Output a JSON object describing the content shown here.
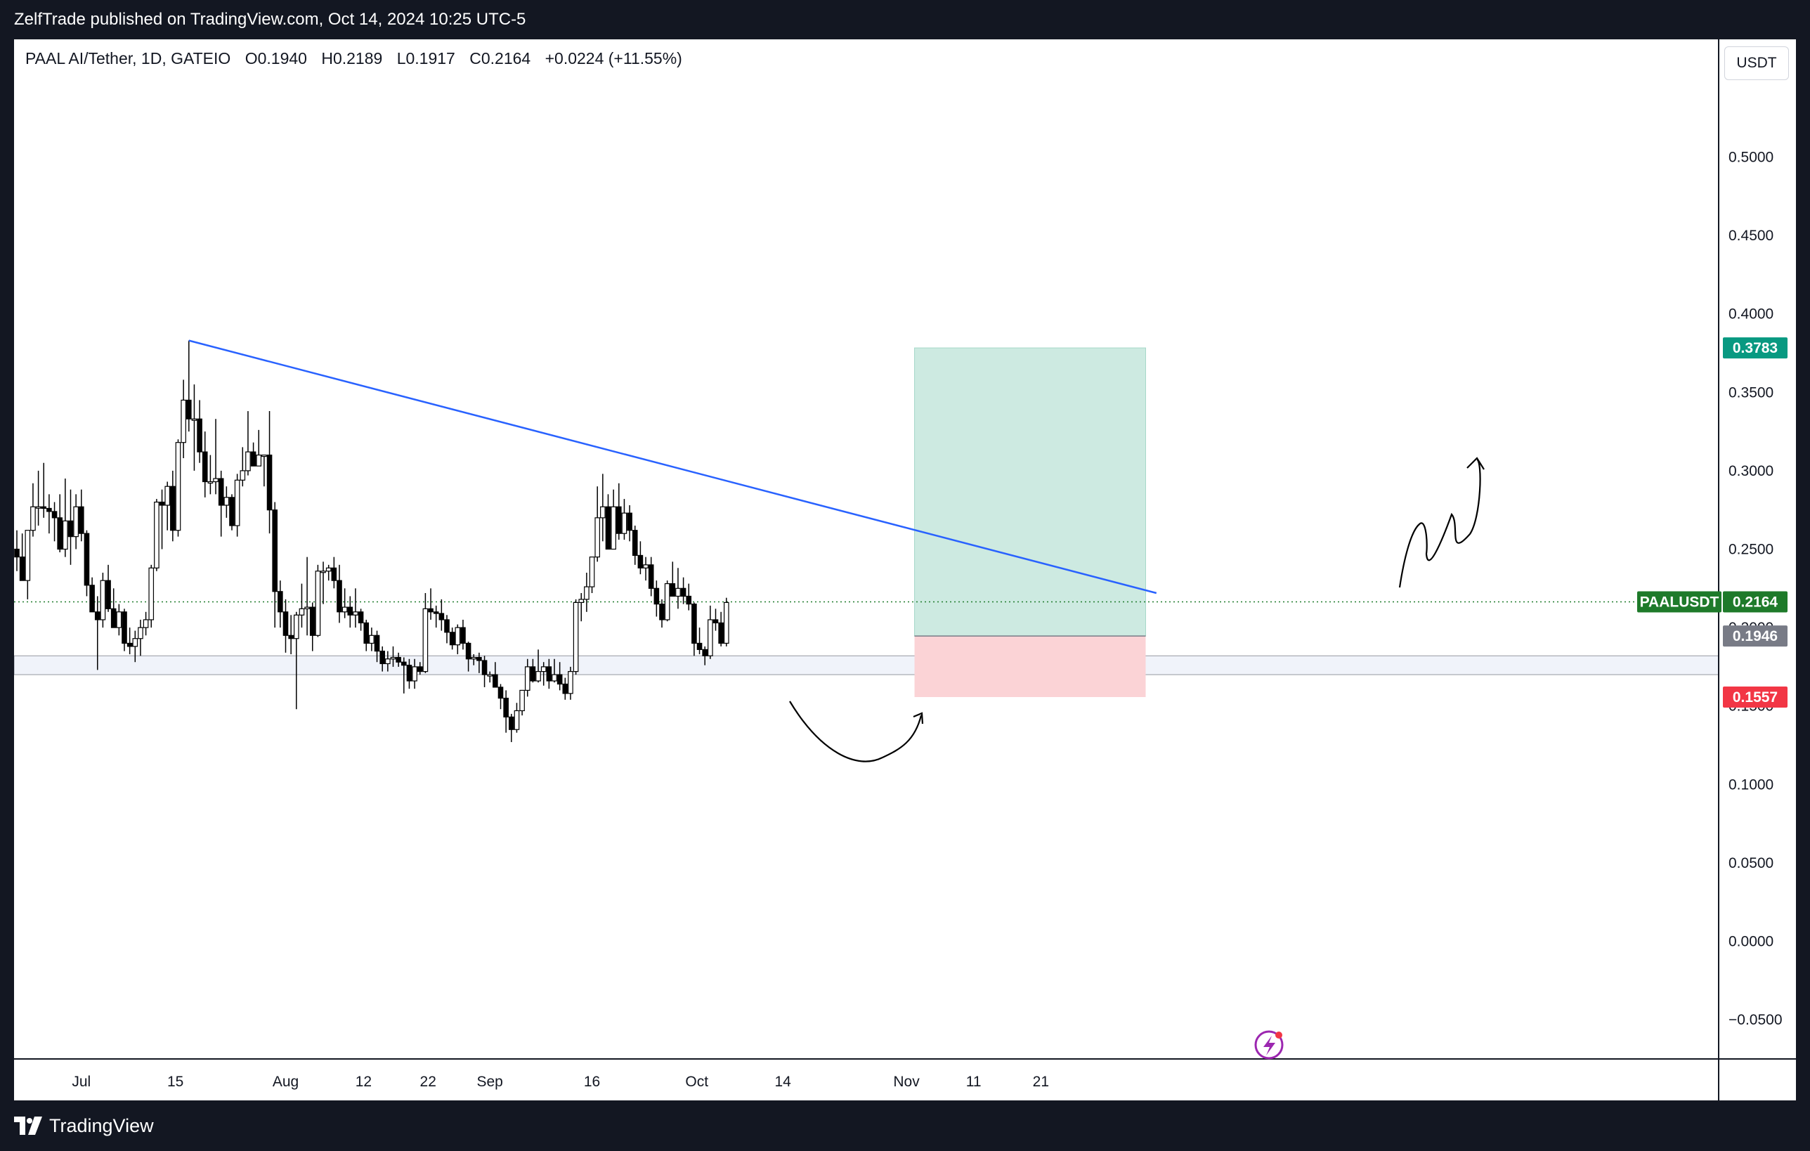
{
  "header": {
    "text": "ZelfTrade published on TradingView.com, Oct 14, 2024 10:25 UTC-5"
  },
  "legend": {
    "symbol": "PAAL AI/Tether, 1D, GATEIO",
    "open": "O0.1940",
    "high": "H0.2189",
    "low": "L0.1917",
    "close": "C0.2164",
    "change": "+0.0224 (+11.55%)"
  },
  "unit": "USDT",
  "footer": {
    "brand": "TradingView"
  },
  "colors": {
    "background": "#ffffff",
    "frame": "#131722",
    "candle_up": "#ffffff",
    "candle_down": "#000000",
    "trendline": "#2962ff",
    "profit_zone": "#cdeae1",
    "loss_zone": "#fbd3d6",
    "target_tag": "#089981",
    "stop_tag": "#f23645",
    "price_tag": "#1e7a2a",
    "entry_tag": "#787b86"
  },
  "chart_data": {
    "type": "candlestick",
    "y_ticks": [
      "0.5000",
      "0.4500",
      "0.4000",
      "0.3500",
      "0.3000",
      "0.2500",
      "0.2000",
      "0.1500",
      "0.1000",
      "0.0500",
      "0.0000",
      "−0.0500"
    ],
    "y_range": [
      -0.075,
      0.575
    ],
    "x_ticks": [
      "Jul",
      "15",
      "Aug",
      "12",
      "22",
      "Sep",
      "16",
      "Oct",
      "14",
      "Nov",
      "11",
      "21"
    ],
    "candles": [
      {
        "o": 0.25,
        "h": 0.262,
        "l": 0.236,
        "c": 0.245
      },
      {
        "o": 0.245,
        "h": 0.26,
        "l": 0.23,
        "c": 0.23
      },
      {
        "o": 0.23,
        "h": 0.262,
        "l": 0.218,
        "c": 0.262
      },
      {
        "o": 0.262,
        "h": 0.292,
        "l": 0.258,
        "c": 0.277
      },
      {
        "o": 0.277,
        "h": 0.3,
        "l": 0.265,
        "c": 0.277
      },
      {
        "o": 0.277,
        "h": 0.305,
        "l": 0.27,
        "c": 0.276
      },
      {
        "o": 0.276,
        "h": 0.285,
        "l": 0.26,
        "c": 0.274
      },
      {
        "o": 0.274,
        "h": 0.28,
        "l": 0.255,
        "c": 0.27
      },
      {
        "o": 0.27,
        "h": 0.285,
        "l": 0.248,
        "c": 0.25
      },
      {
        "o": 0.25,
        "h": 0.295,
        "l": 0.245,
        "c": 0.268
      },
      {
        "o": 0.268,
        "h": 0.288,
        "l": 0.24,
        "c": 0.258
      },
      {
        "o": 0.258,
        "h": 0.285,
        "l": 0.25,
        "c": 0.277
      },
      {
        "o": 0.277,
        "h": 0.288,
        "l": 0.255,
        "c": 0.26
      },
      {
        "o": 0.26,
        "h": 0.262,
        "l": 0.22,
        "c": 0.227
      },
      {
        "o": 0.227,
        "h": 0.232,
        "l": 0.21,
        "c": 0.21
      },
      {
        "o": 0.21,
        "h": 0.22,
        "l": 0.173,
        "c": 0.205
      },
      {
        "o": 0.205,
        "h": 0.235,
        "l": 0.2,
        "c": 0.23
      },
      {
        "o": 0.23,
        "h": 0.24,
        "l": 0.21,
        "c": 0.212
      },
      {
        "o": 0.212,
        "h": 0.225,
        "l": 0.2,
        "c": 0.2
      },
      {
        "o": 0.2,
        "h": 0.215,
        "l": 0.195,
        "c": 0.21
      },
      {
        "o": 0.21,
        "h": 0.212,
        "l": 0.185,
        "c": 0.19
      },
      {
        "o": 0.19,
        "h": 0.2,
        "l": 0.183,
        "c": 0.188
      },
      {
        "o": 0.188,
        "h": 0.198,
        "l": 0.178,
        "c": 0.193
      },
      {
        "o": 0.193,
        "h": 0.205,
        "l": 0.182,
        "c": 0.2
      },
      {
        "o": 0.2,
        "h": 0.21,
        "l": 0.195,
        "c": 0.205
      },
      {
        "o": 0.205,
        "h": 0.24,
        "l": 0.2,
        "c": 0.238
      },
      {
        "o": 0.238,
        "h": 0.282,
        "l": 0.236,
        "c": 0.28
      },
      {
        "o": 0.28,
        "h": 0.288,
        "l": 0.25,
        "c": 0.278
      },
      {
        "o": 0.278,
        "h": 0.293,
        "l": 0.262,
        "c": 0.29
      },
      {
        "o": 0.29,
        "h": 0.3,
        "l": 0.255,
        "c": 0.262
      },
      {
        "o": 0.262,
        "h": 0.32,
        "l": 0.258,
        "c": 0.318
      },
      {
        "o": 0.318,
        "h": 0.358,
        "l": 0.308,
        "c": 0.345
      },
      {
        "o": 0.345,
        "h": 0.383,
        "l": 0.325,
        "c": 0.333
      },
      {
        "o": 0.333,
        "h": 0.355,
        "l": 0.3,
        "c": 0.333
      },
      {
        "o": 0.333,
        "h": 0.345,
        "l": 0.305,
        "c": 0.312
      },
      {
        "o": 0.312,
        "h": 0.325,
        "l": 0.283,
        "c": 0.293
      },
      {
        "o": 0.293,
        "h": 0.31,
        "l": 0.285,
        "c": 0.293
      },
      {
        "o": 0.293,
        "h": 0.333,
        "l": 0.285,
        "c": 0.295
      },
      {
        "o": 0.295,
        "h": 0.3,
        "l": 0.258,
        "c": 0.278
      },
      {
        "o": 0.278,
        "h": 0.29,
        "l": 0.27,
        "c": 0.283
      },
      {
        "o": 0.283,
        "h": 0.285,
        "l": 0.262,
        "c": 0.265
      },
      {
        "o": 0.265,
        "h": 0.298,
        "l": 0.258,
        "c": 0.294
      },
      {
        "o": 0.294,
        "h": 0.315,
        "l": 0.29,
        "c": 0.3
      },
      {
        "o": 0.3,
        "h": 0.338,
        "l": 0.297,
        "c": 0.312
      },
      {
        "o": 0.312,
        "h": 0.318,
        "l": 0.303,
        "c": 0.303
      },
      {
        "o": 0.303,
        "h": 0.326,
        "l": 0.303,
        "c": 0.31
      },
      {
        "o": 0.31,
        "h": 0.31,
        "l": 0.29,
        "c": 0.31
      },
      {
        "o": 0.31,
        "h": 0.338,
        "l": 0.26,
        "c": 0.275
      },
      {
        "o": 0.275,
        "h": 0.28,
        "l": 0.2,
        "c": 0.223
      },
      {
        "o": 0.223,
        "h": 0.23,
        "l": 0.2,
        "c": 0.21
      },
      {
        "o": 0.21,
        "h": 0.218,
        "l": 0.184,
        "c": 0.195
      },
      {
        "o": 0.195,
        "h": 0.208,
        "l": 0.183,
        "c": 0.193
      },
      {
        "o": 0.193,
        "h": 0.21,
        "l": 0.148,
        "c": 0.208
      },
      {
        "o": 0.208,
        "h": 0.228,
        "l": 0.2,
        "c": 0.212
      },
      {
        "o": 0.212,
        "h": 0.245,
        "l": 0.195,
        "c": 0.213
      },
      {
        "o": 0.213,
        "h": 0.216,
        "l": 0.185,
        "c": 0.195
      },
      {
        "o": 0.195,
        "h": 0.24,
        "l": 0.194,
        "c": 0.236
      },
      {
        "o": 0.236,
        "h": 0.242,
        "l": 0.215,
        "c": 0.236
      },
      {
        "o": 0.236,
        "h": 0.24,
        "l": 0.23,
        "c": 0.238
      },
      {
        "o": 0.238,
        "h": 0.245,
        "l": 0.225,
        "c": 0.23
      },
      {
        "o": 0.23,
        "h": 0.24,
        "l": 0.203,
        "c": 0.21
      },
      {
        "o": 0.21,
        "h": 0.225,
        "l": 0.206,
        "c": 0.213
      },
      {
        "o": 0.213,
        "h": 0.22,
        "l": 0.2,
        "c": 0.208
      },
      {
        "o": 0.208,
        "h": 0.225,
        "l": 0.2,
        "c": 0.21
      },
      {
        "o": 0.21,
        "h": 0.212,
        "l": 0.198,
        "c": 0.203
      },
      {
        "o": 0.203,
        "h": 0.205,
        "l": 0.185,
        "c": 0.19
      },
      {
        "o": 0.19,
        "h": 0.2,
        "l": 0.185,
        "c": 0.195
      },
      {
        "o": 0.195,
        "h": 0.198,
        "l": 0.178,
        "c": 0.185
      },
      {
        "o": 0.185,
        "h": 0.188,
        "l": 0.172,
        "c": 0.177
      },
      {
        "o": 0.177,
        "h": 0.185,
        "l": 0.172,
        "c": 0.18
      },
      {
        "o": 0.18,
        "h": 0.188,
        "l": 0.175,
        "c": 0.181
      },
      {
        "o": 0.181,
        "h": 0.184,
        "l": 0.175,
        "c": 0.178
      },
      {
        "o": 0.178,
        "h": 0.181,
        "l": 0.158,
        "c": 0.176
      },
      {
        "o": 0.176,
        "h": 0.18,
        "l": 0.161,
        "c": 0.166
      },
      {
        "o": 0.166,
        "h": 0.18,
        "l": 0.161,
        "c": 0.175
      },
      {
        "o": 0.175,
        "h": 0.178,
        "l": 0.17,
        "c": 0.172
      },
      {
        "o": 0.172,
        "h": 0.222,
        "l": 0.171,
        "c": 0.212
      },
      {
        "o": 0.212,
        "h": 0.225,
        "l": 0.205,
        "c": 0.21
      },
      {
        "o": 0.21,
        "h": 0.214,
        "l": 0.2,
        "c": 0.209
      },
      {
        "o": 0.209,
        "h": 0.218,
        "l": 0.198,
        "c": 0.205
      },
      {
        "o": 0.205,
        "h": 0.208,
        "l": 0.19,
        "c": 0.197
      },
      {
        "o": 0.197,
        "h": 0.2,
        "l": 0.186,
        "c": 0.189
      },
      {
        "o": 0.189,
        "h": 0.202,
        "l": 0.183,
        "c": 0.2
      },
      {
        "o": 0.2,
        "h": 0.205,
        "l": 0.186,
        "c": 0.19
      },
      {
        "o": 0.19,
        "h": 0.191,
        "l": 0.172,
        "c": 0.18
      },
      {
        "o": 0.18,
        "h": 0.183,
        "l": 0.176,
        "c": 0.181
      },
      {
        "o": 0.181,
        "h": 0.184,
        "l": 0.171,
        "c": 0.179
      },
      {
        "o": 0.179,
        "h": 0.182,
        "l": 0.162,
        "c": 0.17
      },
      {
        "o": 0.17,
        "h": 0.172,
        "l": 0.165,
        "c": 0.17
      },
      {
        "o": 0.17,
        "h": 0.178,
        "l": 0.162,
        "c": 0.162
      },
      {
        "o": 0.162,
        "h": 0.164,
        "l": 0.148,
        "c": 0.155
      },
      {
        "o": 0.155,
        "h": 0.16,
        "l": 0.133,
        "c": 0.143
      },
      {
        "o": 0.143,
        "h": 0.145,
        "l": 0.127,
        "c": 0.135
      },
      {
        "o": 0.135,
        "h": 0.152,
        "l": 0.133,
        "c": 0.147
      },
      {
        "o": 0.147,
        "h": 0.16,
        "l": 0.144,
        "c": 0.16
      },
      {
        "o": 0.16,
        "h": 0.18,
        "l": 0.156,
        "c": 0.175
      },
      {
        "o": 0.175,
        "h": 0.18,
        "l": 0.165,
        "c": 0.166
      },
      {
        "o": 0.166,
        "h": 0.186,
        "l": 0.165,
        "c": 0.172
      },
      {
        "o": 0.172,
        "h": 0.178,
        "l": 0.163,
        "c": 0.175
      },
      {
        "o": 0.175,
        "h": 0.18,
        "l": 0.161,
        "c": 0.166
      },
      {
        "o": 0.166,
        "h": 0.18,
        "l": 0.165,
        "c": 0.17
      },
      {
        "o": 0.17,
        "h": 0.178,
        "l": 0.16,
        "c": 0.164
      },
      {
        "o": 0.164,
        "h": 0.168,
        "l": 0.154,
        "c": 0.158
      },
      {
        "o": 0.158,
        "h": 0.175,
        "l": 0.154,
        "c": 0.172
      },
      {
        "o": 0.172,
        "h": 0.218,
        "l": 0.17,
        "c": 0.216
      },
      {
        "o": 0.216,
        "h": 0.222,
        "l": 0.204,
        "c": 0.218
      },
      {
        "o": 0.218,
        "h": 0.235,
        "l": 0.21,
        "c": 0.226
      },
      {
        "o": 0.226,
        "h": 0.245,
        "l": 0.222,
        "c": 0.245
      },
      {
        "o": 0.245,
        "h": 0.29,
        "l": 0.242,
        "c": 0.27
      },
      {
        "o": 0.27,
        "h": 0.298,
        "l": 0.255,
        "c": 0.277
      },
      {
        "o": 0.277,
        "h": 0.285,
        "l": 0.255,
        "c": 0.25
      },
      {
        "o": 0.25,
        "h": 0.288,
        "l": 0.25,
        "c": 0.277
      },
      {
        "o": 0.277,
        "h": 0.292,
        "l": 0.256,
        "c": 0.26
      },
      {
        "o": 0.26,
        "h": 0.282,
        "l": 0.256,
        "c": 0.273
      },
      {
        "o": 0.273,
        "h": 0.278,
        "l": 0.255,
        "c": 0.262
      },
      {
        "o": 0.262,
        "h": 0.265,
        "l": 0.24,
        "c": 0.246
      },
      {
        "o": 0.246,
        "h": 0.255,
        "l": 0.234,
        "c": 0.238
      },
      {
        "o": 0.238,
        "h": 0.245,
        "l": 0.23,
        "c": 0.24
      },
      {
        "o": 0.24,
        "h": 0.245,
        "l": 0.22,
        "c": 0.225
      },
      {
        "o": 0.225,
        "h": 0.23,
        "l": 0.207,
        "c": 0.215
      },
      {
        "o": 0.215,
        "h": 0.218,
        "l": 0.2,
        "c": 0.205
      },
      {
        "o": 0.205,
        "h": 0.23,
        "l": 0.204,
        "c": 0.228
      },
      {
        "o": 0.228,
        "h": 0.242,
        "l": 0.222,
        "c": 0.22
      },
      {
        "o": 0.22,
        "h": 0.238,
        "l": 0.212,
        "c": 0.225
      },
      {
        "o": 0.225,
        "h": 0.232,
        "l": 0.215,
        "c": 0.22
      },
      {
        "o": 0.22,
        "h": 0.228,
        "l": 0.211,
        "c": 0.215
      },
      {
        "o": 0.215,
        "h": 0.216,
        "l": 0.182,
        "c": 0.19
      },
      {
        "o": 0.19,
        "h": 0.2,
        "l": 0.183,
        "c": 0.186
      },
      {
        "o": 0.186,
        "h": 0.188,
        "l": 0.176,
        "c": 0.182
      },
      {
        "o": 0.182,
        "h": 0.214,
        "l": 0.18,
        "c": 0.205
      },
      {
        "o": 0.205,
        "h": 0.212,
        "l": 0.198,
        "c": 0.203
      },
      {
        "o": 0.203,
        "h": 0.21,
        "l": 0.188,
        "c": 0.19
      },
      {
        "o": 0.19,
        "h": 0.219,
        "l": 0.188,
        "c": 0.216
      }
    ],
    "trendline": {
      "from_index": 32,
      "from_value": 0.383,
      "to_index": 212,
      "to_value": 0.222
    },
    "support_zone": [
      0.17,
      0.182
    ],
    "current_price": 0.2164,
    "position": {
      "start_index": 167,
      "end_index": 210,
      "target": 0.3783,
      "entry": 0.1946,
      "stop": 0.1557
    },
    "price_labels": {
      "symbol_tag": "PAALUSDT",
      "price": "0.2164",
      "target": "0.3783",
      "entry": "0.1946",
      "stop": "0.1557"
    }
  }
}
